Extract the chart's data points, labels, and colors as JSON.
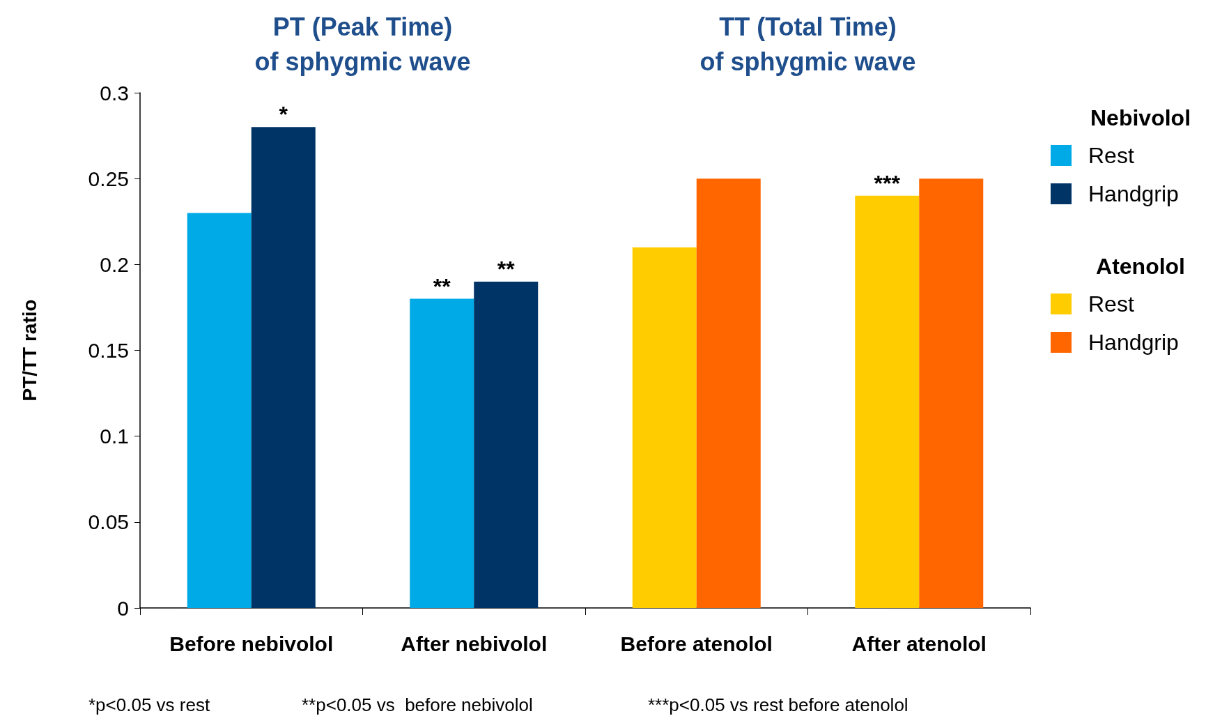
{
  "chart_data": {
    "type": "bar",
    "ylabel": "PT/TT ratio",
    "categories": [
      "Before nebivolol",
      "After nebivolol",
      "Before atenolol",
      "After atenolol"
    ],
    "series": [
      {
        "name": "Rest",
        "color": "#00aae6",
        "values": [
          0.23,
          0.18,
          null,
          null
        ]
      },
      {
        "name": "Handgrip",
        "color": "#003366",
        "values": [
          0.28,
          0.19,
          null,
          null
        ]
      },
      {
        "name": "Rest",
        "color": "#ffcc00",
        "values": [
          null,
          null,
          0.21,
          0.24
        ]
      },
      {
        "name": "Handgrip",
        "color": "#ff6600",
        "values": [
          null,
          null,
          0.25,
          0.25
        ]
      }
    ],
    "ylim": [
      0,
      0.3
    ],
    "yticks": [
      0,
      0.05,
      0.1,
      0.15,
      0.2,
      0.25,
      0.3
    ],
    "grid": false,
    "legend": "right",
    "annotations": [
      "PT (Peak Time)\nof sphygmic wave",
      "TT (Total Time)\nof sphygmic wave",
      "Nebivolol",
      "Atenolol",
      "*p<0.05 vs rest",
      "**p<0.05 vs  before nebivolol",
      "***p<0.05 vs rest before atenolol",
      {
        "text": "*",
        "x": "Before nebivolol",
        "y": 0.28
      },
      {
        "text": "**",
        "x": "After nebivolol",
        "y": 0.18
      },
      {
        "text": "**",
        "x": "After nebivolol",
        "y": 0.19
      },
      {
        "text": "***",
        "x": "After atenolol",
        "y": 0.24
      }
    ]
  }
}
